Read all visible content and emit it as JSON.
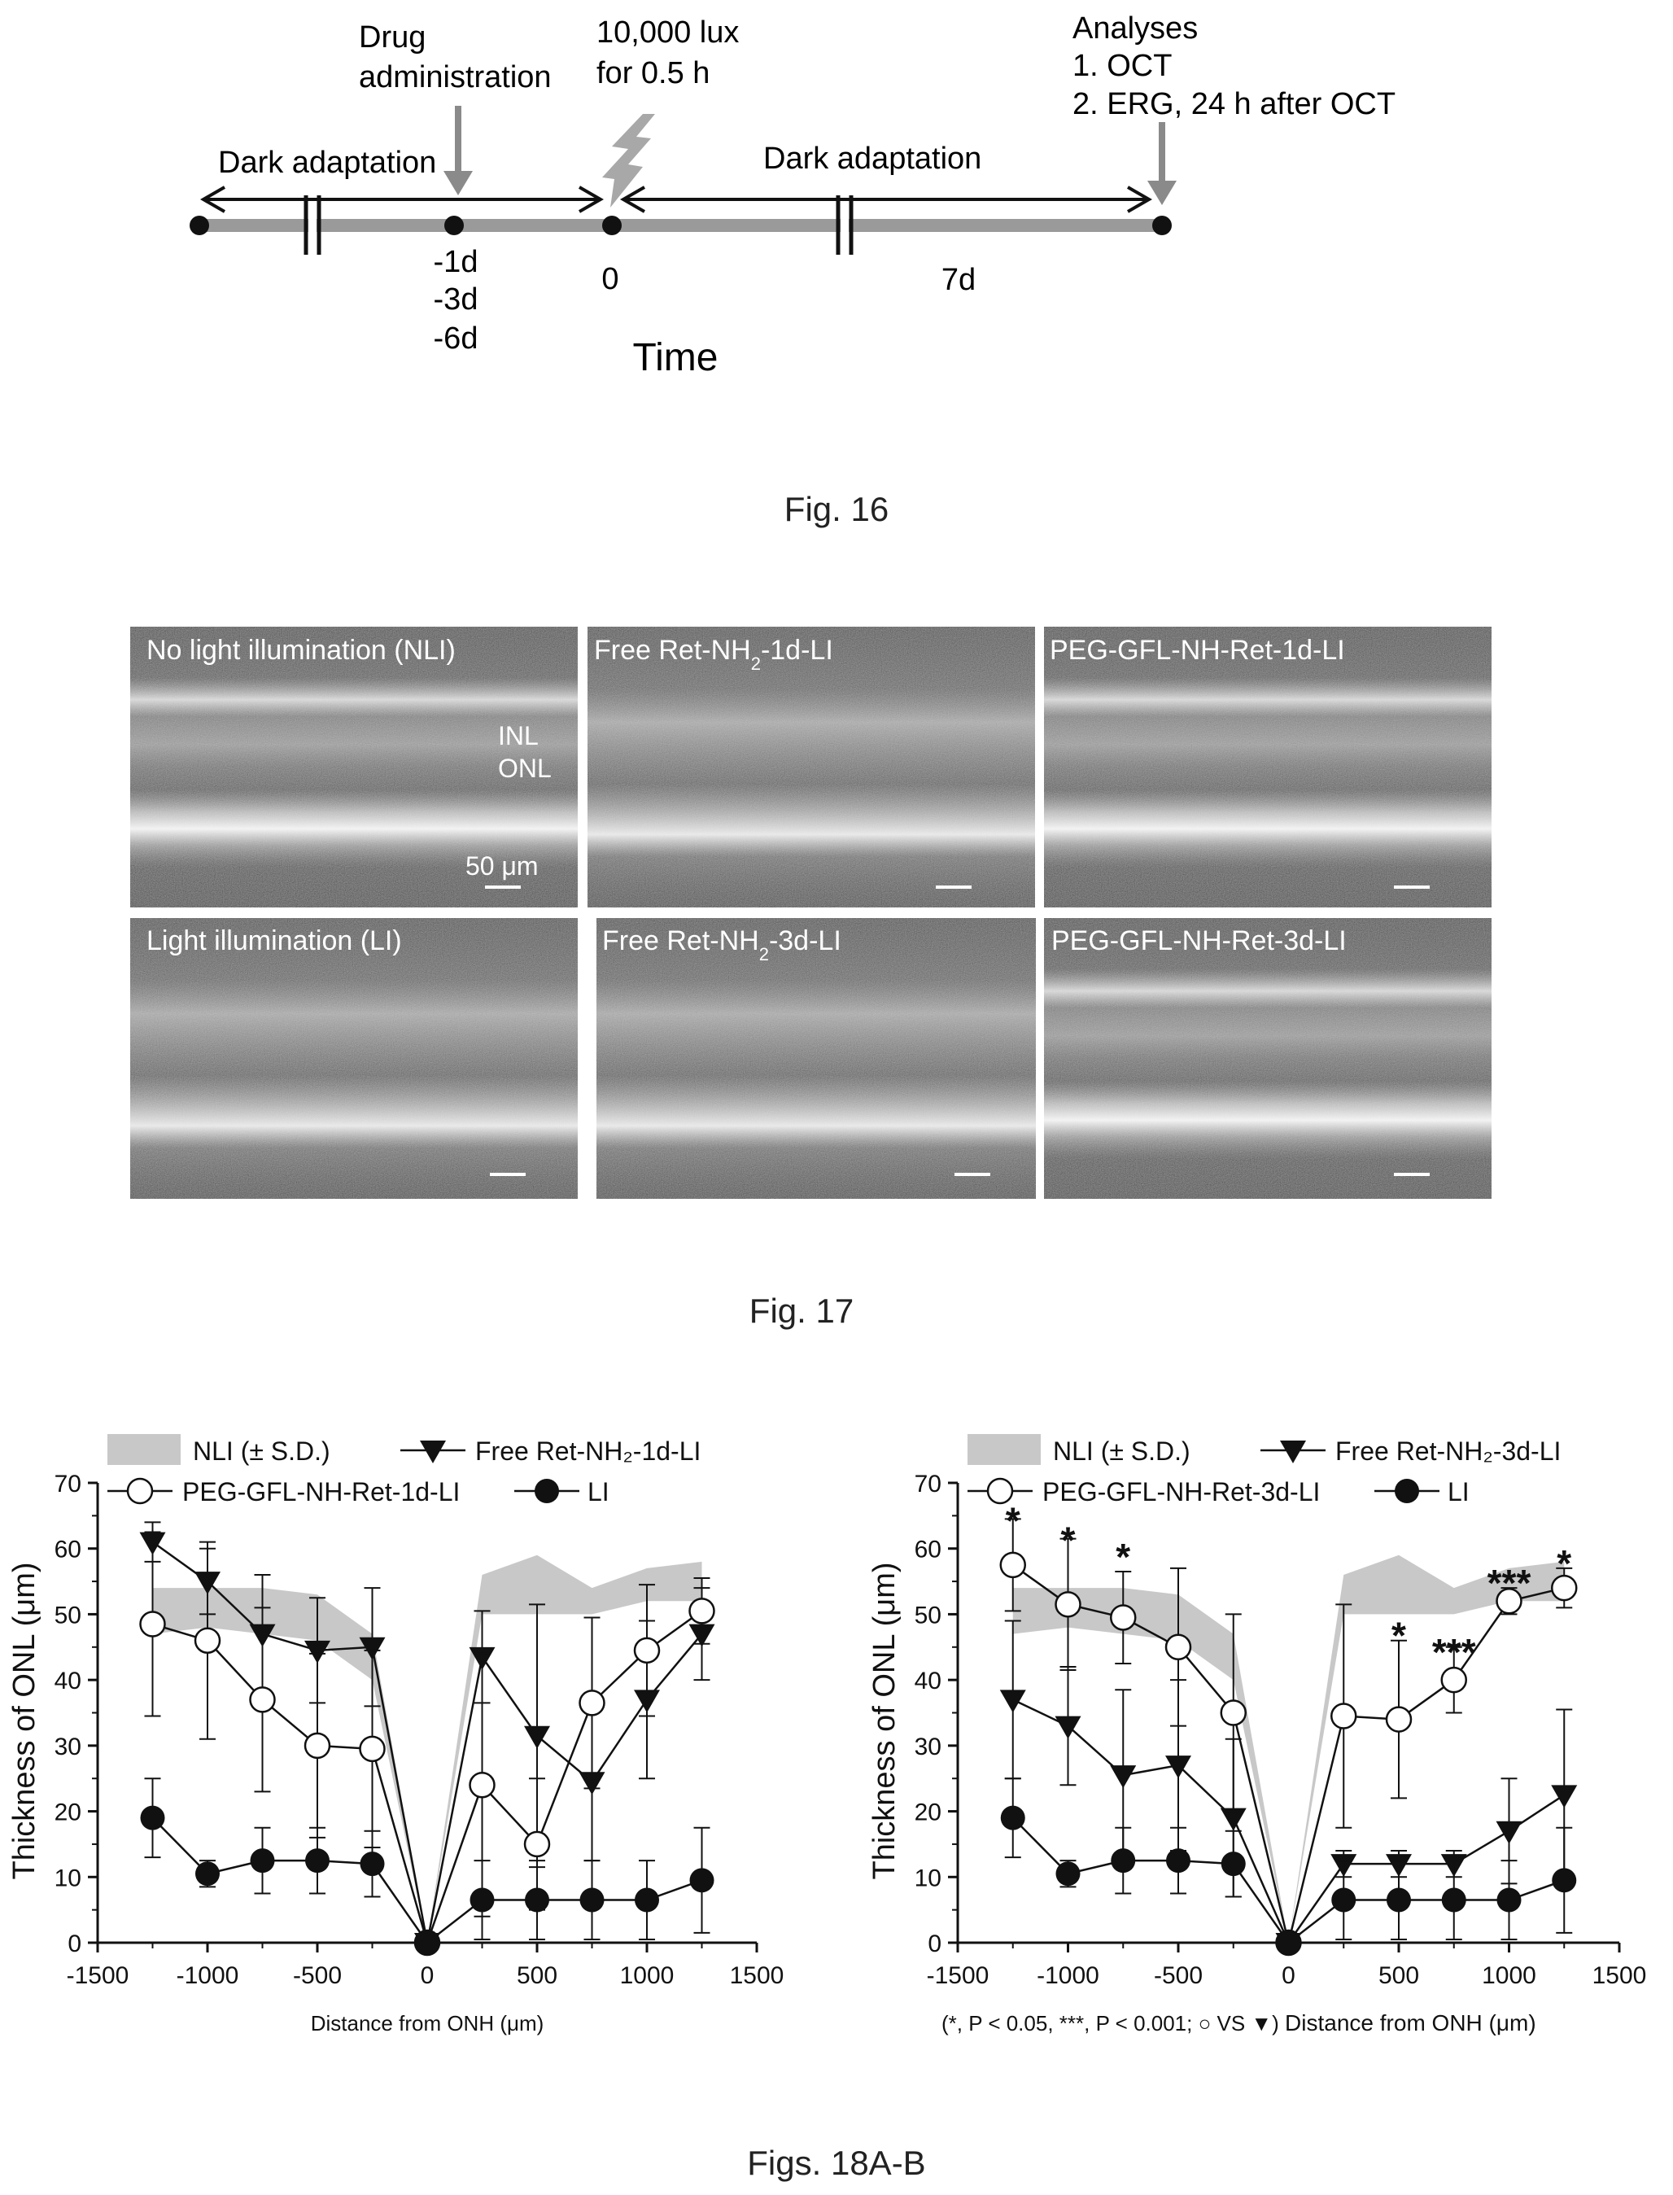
{
  "fig16": {
    "caption": "Fig. 16",
    "labels": {
      "drug": [
        "Drug",
        "administration"
      ],
      "lux": [
        "10,000 lux",
        "for 0.5 h"
      ],
      "analyses": [
        "Analyses",
        "1.  OCT",
        "2.  ERG, 24 h after OCT"
      ],
      "dark1": "Dark adaptation",
      "dark2": "Dark adaptation",
      "days": [
        "-1d",
        "-3d",
        "-6d"
      ],
      "zero": "0",
      "seven": "7d",
      "time": "Time"
    },
    "colors": {
      "bar": "#9a9a9a",
      "arrow": "#111111",
      "bolt": "#a8a8a8"
    }
  },
  "fig17": {
    "caption": "Fig. 17",
    "panels": [
      {
        "label": "No light illumination (NLI)",
        "extra": [
          "INL",
          "ONL"
        ],
        "scale": "50 μm"
      },
      {
        "label": "Free Ret-NH",
        "sub": "2",
        "suffix": "-1d-LI"
      },
      {
        "label": "PEG-GFL-NH-Ret-1d-LI"
      },
      {
        "label": "Light illumination (LI)"
      },
      {
        "label": "Free Ret-NH",
        "sub": "2",
        "suffix": "-3d-LI"
      },
      {
        "label": "PEG-GFL-NH-Ret-3d-LI"
      }
    ]
  },
  "fig18": {
    "caption": "Figs. 18A-B",
    "left_note": "",
    "right_note": "(*, P < 0.05, ***, P < 0.001; ○ VS ▼)",
    "chart_data": [
      {
        "type": "line",
        "title": "",
        "xlabel": "Distance from ONH (μm)",
        "ylabel": "Thickness of ONL (μm)",
        "xlim": [
          -1500,
          1500
        ],
        "ylim": [
          0,
          70
        ],
        "xticks": [
          "-1500",
          "-1000",
          "-500",
          "0",
          "500",
          "1000",
          "1500"
        ],
        "yticks": [
          "0",
          "10",
          "20",
          "30",
          "40",
          "50",
          "60",
          "70"
        ],
        "legend": [
          "NLI (± S.D.)",
          "Free Ret-NH₂-1d-LI",
          "PEG-GFL-NH-Ret-1d-LI",
          "LI"
        ],
        "x": [
          -1250,
          -1000,
          -750,
          -500,
          -250,
          0,
          250,
          500,
          750,
          1000,
          1250
        ],
        "band_low": [
          47,
          48,
          47,
          46,
          40,
          0,
          50,
          50,
          50,
          52,
          52
        ],
        "band_high": [
          54,
          54,
          54,
          53,
          47,
          0,
          56,
          59,
          54,
          57,
          58
        ],
        "series": [
          {
            "name": "Free Ret-NH₂-1d-LI",
            "marker": "triangle",
            "y": [
              61,
              55,
              47,
              44.5,
              45,
              0,
              43.5,
              31.5,
              24.5,
              37,
              47
            ],
            "err": [
              3,
              5,
              9,
              8,
              9,
              0,
              7,
              20,
              12,
              12,
              7
            ]
          },
          {
            "name": "PEG-GFL-NH-Ret-1d-LI",
            "marker": "open",
            "y": [
              48.5,
              46,
              37,
              30,
              29.5,
              0,
              24,
              15,
              36.5,
              44.5,
              50.5
            ],
            "err": [
              14,
              15,
              14,
              14,
              15,
              0,
              20,
              10,
              13,
              10,
              5
            ]
          },
          {
            "name": "LI",
            "marker": "filled",
            "y": [
              19,
              10.5,
              12.5,
              12.5,
              12,
              0,
              6.5,
              6.5,
              6.5,
              6.5,
              9.5
            ],
            "err": [
              6,
              2,
              5,
              5,
              5,
              0,
              6,
              6,
              6,
              6,
              8
            ]
          }
        ]
      },
      {
        "type": "line",
        "title": "",
        "xlabel": "Distance from ONH (μm)",
        "ylabel": "Thickness of ONL (μm)",
        "xlim": [
          -1500,
          1500
        ],
        "ylim": [
          0,
          70
        ],
        "xticks": [
          "-1500",
          "-1000",
          "-500",
          "0",
          "500",
          "1000",
          "1500"
        ],
        "yticks": [
          "0",
          "10",
          "20",
          "30",
          "40",
          "50",
          "60",
          "70"
        ],
        "legend": [
          "NLI (± S.D.)",
          "Free Ret-NH₂-3d-LI",
          "PEG-GFL-NH-Ret-3d-LI",
          "LI"
        ],
        "x": [
          -1250,
          -1000,
          -750,
          -500,
          -250,
          0,
          250,
          500,
          750,
          1000,
          1250
        ],
        "band_low": [
          47,
          48,
          47,
          46,
          40,
          0,
          50,
          50,
          50,
          52,
          52
        ],
        "band_high": [
          54,
          54,
          54,
          53,
          47,
          0,
          56,
          59,
          54,
          57,
          58
        ],
        "series": [
          {
            "name": "Free Ret-NH₂-3d-LI",
            "marker": "triangle",
            "y": [
              37,
              33,
              25.5,
              27,
              19,
              0,
              12,
              12,
              12,
              17,
              22.5
            ],
            "err": [
              12,
              9,
              13,
              13,
              12,
              0,
              2,
              2,
              2,
              8,
              13
            ]
          },
          {
            "name": "PEG-GFL-NH-Ret-3d-LI",
            "marker": "open",
            "y": [
              57.5,
              51.5,
              49.5,
              45,
              35,
              0,
              34.5,
              34,
              40,
              52,
              54
            ],
            "err": [
              7,
              10,
              7,
              12,
              15,
              0,
              17,
              12,
              5,
              2,
              3
            ]
          },
          {
            "name": "LI",
            "marker": "filled",
            "y": [
              19,
              10.5,
              12.5,
              12.5,
              12,
              0,
              6.5,
              6.5,
              6.5,
              6.5,
              9.5
            ],
            "err": [
              6,
              2,
              5,
              5,
              5,
              0,
              6,
              6,
              6,
              6,
              8
            ]
          }
        ],
        "annotations": [
          {
            "x": -1250,
            "y": 64,
            "text": "*"
          },
          {
            "x": -1000,
            "y": 61,
            "text": "*"
          },
          {
            "x": -750,
            "y": 58.5,
            "text": "*"
          },
          {
            "x": 500,
            "y": 46.5,
            "text": "*"
          },
          {
            "x": 750,
            "y": 44,
            "text": "***"
          },
          {
            "x": 1000,
            "y": 54.5,
            "text": "***"
          },
          {
            "x": 1250,
            "y": 57.5,
            "text": "*"
          }
        ]
      }
    ]
  }
}
